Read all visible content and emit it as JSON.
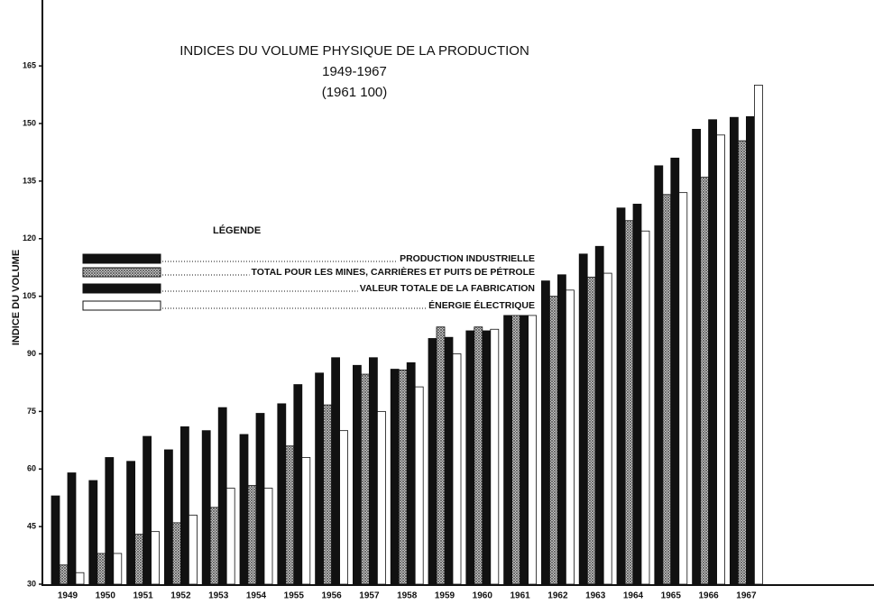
{
  "chart_data": {
    "type": "bar",
    "title": [
      "INDICES DU VOLUME PHYSIQUE DE LA PRODUCTION",
      "1949-1967",
      "(1961 100)"
    ],
    "y_label": "INDICE DU VOLUME",
    "legend_title": "LÉGENDE",
    "categories": [
      "1949",
      "1950",
      "1951",
      "1952",
      "1953",
      "1954",
      "1955",
      "1956",
      "1957",
      "1958",
      "1959",
      "1960",
      "1961",
      "1962",
      "1963",
      "1964",
      "1965",
      "1966",
      "1967"
    ],
    "series": [
      {
        "name": "PRODUCTION INDUSTRIELLE",
        "color": "#111111",
        "values": [
          53,
          57,
          62,
          65,
          70,
          69,
          77,
          85,
          87,
          86,
          94,
          96,
          100,
          109,
          116,
          128,
          139,
          148.5,
          151.6
        ]
      },
      {
        "name": "TOTAL POUR LES MINES, CARRIÈRES ET PUITS DE PÉTROLE",
        "color": "#9a9a9a",
        "pattern": "crosshatch",
        "values": [
          35,
          38,
          43,
          46,
          50,
          55.7,
          66,
          76.7,
          84.7,
          85.8,
          97,
          97,
          100,
          105,
          110,
          124.7,
          131.5,
          136,
          145.5
        ]
      },
      {
        "name": "VALEUR TOTALE DE LA FABRICATION",
        "color": "#111111",
        "values": [
          59,
          63,
          68.5,
          71,
          76,
          74.5,
          82,
          89,
          89,
          87.7,
          94.3,
          96,
          100,
          110.6,
          118,
          129,
          141,
          151,
          151.8
        ]
      },
      {
        "name": "ÉNERGIE ÉLECTRIQUE",
        "color": "#ffffff",
        "values": [
          33,
          38,
          43.7,
          48,
          55,
          55,
          63,
          70,
          75,
          81.4,
          90,
          96.4,
          100,
          106.6,
          111,
          122,
          132,
          147,
          160
        ]
      }
    ],
    "ylim": [
      30,
      181
    ],
    "yticks": [
      30,
      45,
      60,
      75,
      90,
      105,
      120,
      135,
      150,
      165
    ]
  }
}
